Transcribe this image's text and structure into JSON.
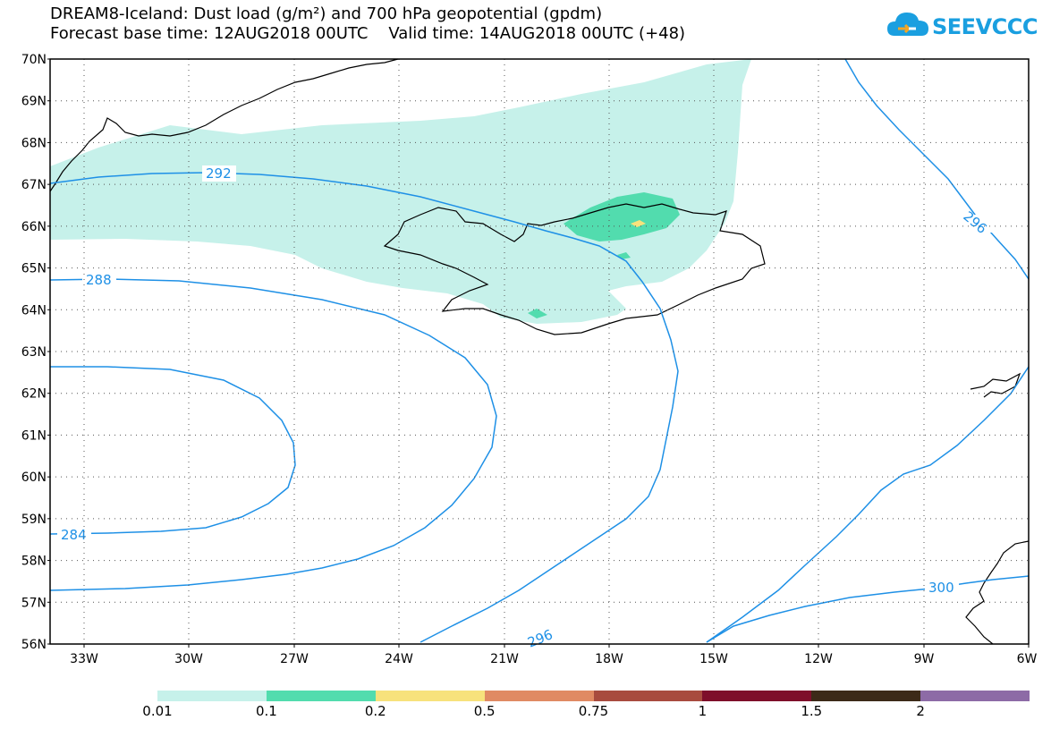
{
  "title": {
    "line1": "DREAM8-Iceland: Dust load (g/m²) and 700 hPa geopotential (gpdm)",
    "line2": "Forecast base time: 12AUG2018 00UTC    Valid time: 14AUG2018 00UTC (+48)"
  },
  "logo": {
    "text": "SEEVCCC",
    "icon": "cloud-icon",
    "color": "#1a9fe0"
  },
  "map": {
    "lat_labels": [
      "70N",
      "69N",
      "68N",
      "67N",
      "66N",
      "65N",
      "64N",
      "63N",
      "62N",
      "61N",
      "60N",
      "59N",
      "58N",
      "57N",
      "56N"
    ],
    "lon_labels": [
      "33W",
      "30W",
      "27W",
      "24W",
      "21W",
      "18W",
      "15W",
      "12W",
      "9W",
      "6W"
    ],
    "contour_labels": [
      "292",
      "288",
      "284",
      "296",
      "296",
      "300"
    ],
    "contour_color": "#1e90e6",
    "dust_colors": {
      "low": "#c6f1ea",
      "mid": "#52dcae",
      "high": "#f7e27c"
    }
  },
  "legend": {
    "colors": [
      "#c6f1ea",
      "#52dcae",
      "#f7e27c",
      "#e08a63",
      "#a84b3e",
      "#7e0e2a",
      "#3c2a18",
      "#8d6ba6"
    ],
    "labels": [
      "0.01",
      "0.1",
      "0.2",
      "0.5",
      "0.75",
      "1",
      "1.5",
      "2"
    ]
  }
}
